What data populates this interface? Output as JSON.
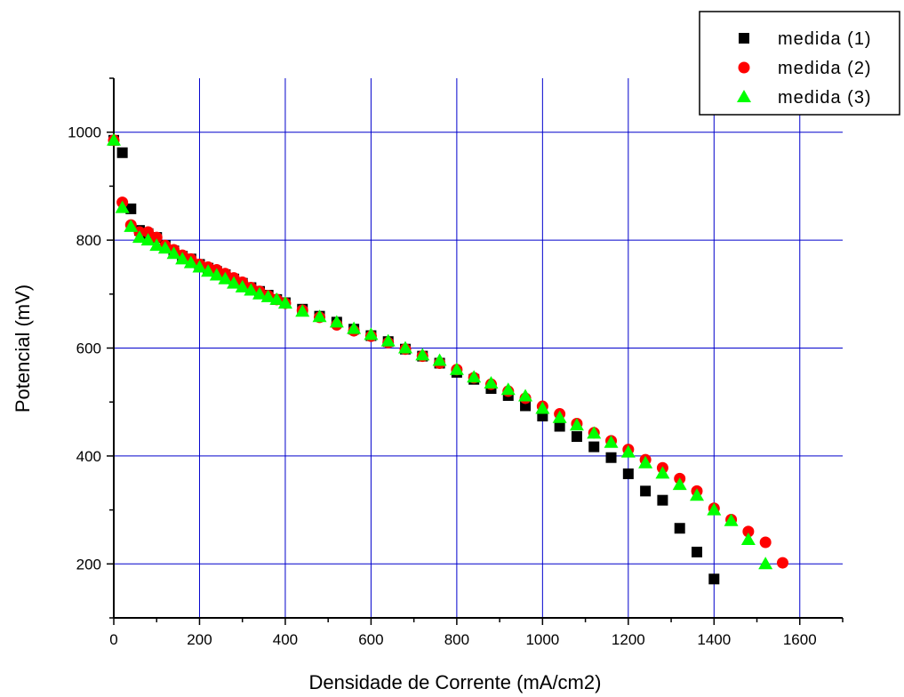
{
  "chart_data": {
    "type": "scatter",
    "xlabel": "Densidade de Corrente (mA/cm2)",
    "ylabel": "Potencial (mV)",
    "xlim": [
      0,
      1700
    ],
    "ylim": [
      100,
      1100
    ],
    "xticks": [
      0,
      200,
      400,
      600,
      800,
      1000,
      1200,
      1400,
      1600
    ],
    "yticks": [
      200,
      400,
      600,
      800,
      1000
    ],
    "grid": true,
    "legend_position": "top-right",
    "series": [
      {
        "name": "medida (1)",
        "marker": "square",
        "color": "#000000",
        "x": [
          0,
          20,
          40,
          60,
          80,
          100,
          120,
          140,
          160,
          180,
          200,
          220,
          240,
          260,
          280,
          300,
          320,
          340,
          360,
          380,
          400,
          440,
          480,
          520,
          560,
          600,
          640,
          680,
          720,
          760,
          800,
          840,
          880,
          920,
          960,
          1000,
          1040,
          1080,
          1120,
          1160,
          1200,
          1240,
          1280,
          1320,
          1360,
          1400
        ],
        "y": [
          985,
          962,
          858,
          818,
          812,
          805,
          790,
          780,
          770,
          765,
          755,
          748,
          742,
          736,
          728,
          720,
          712,
          705,
          698,
          690,
          684,
          672,
          659,
          648,
          635,
          623,
          612,
          598,
          585,
          572,
          555,
          542,
          525,
          512,
          493,
          474,
          455,
          436,
          417,
          397,
          367,
          335,
          318,
          266,
          222,
          172
        ]
      },
      {
        "name": "medida (2)",
        "marker": "circle",
        "color": "#ff0000",
        "x": [
          0,
          20,
          40,
          60,
          80,
          100,
          120,
          140,
          160,
          180,
          200,
          220,
          240,
          260,
          280,
          300,
          320,
          340,
          360,
          380,
          400,
          440,
          480,
          520,
          560,
          600,
          640,
          680,
          720,
          760,
          800,
          840,
          880,
          920,
          960,
          1000,
          1040,
          1080,
          1120,
          1160,
          1200,
          1240,
          1280,
          1320,
          1360,
          1400,
          1440,
          1480,
          1520,
          1560
        ],
        "y": [
          985,
          870,
          828,
          815,
          815,
          805,
          790,
          782,
          772,
          765,
          755,
          750,
          745,
          738,
          730,
          722,
          712,
          705,
          697,
          690,
          683,
          670,
          657,
          643,
          632,
          622,
          610,
          598,
          585,
          572,
          560,
          545,
          533,
          520,
          507,
          492,
          478,
          460,
          443,
          428,
          412,
          393,
          378,
          358,
          335,
          303,
          282,
          260,
          240,
          202
        ]
      },
      {
        "name": "medida (3)",
        "marker": "triangle",
        "color": "#00ff00",
        "x": [
          0,
          20,
          40,
          60,
          80,
          100,
          120,
          140,
          160,
          180,
          200,
          220,
          240,
          260,
          280,
          300,
          320,
          340,
          360,
          380,
          400,
          440,
          480,
          520,
          560,
          600,
          640,
          680,
          720,
          760,
          800,
          840,
          880,
          920,
          960,
          1000,
          1040,
          1080,
          1120,
          1160,
          1200,
          1240,
          1280,
          1320,
          1360,
          1400,
          1440,
          1480,
          1520
        ],
        "y": [
          985,
          860,
          825,
          805,
          800,
          790,
          785,
          775,
          765,
          758,
          750,
          742,
          735,
          728,
          720,
          713,
          707,
          700,
          695,
          690,
          683,
          668,
          658,
          648,
          636,
          625,
          613,
          600,
          587,
          577,
          560,
          546,
          535,
          523,
          511,
          488,
          471,
          457,
          442,
          425,
          407,
          387,
          368,
          347,
          327,
          300,
          280,
          245,
          200
        ]
      }
    ]
  }
}
